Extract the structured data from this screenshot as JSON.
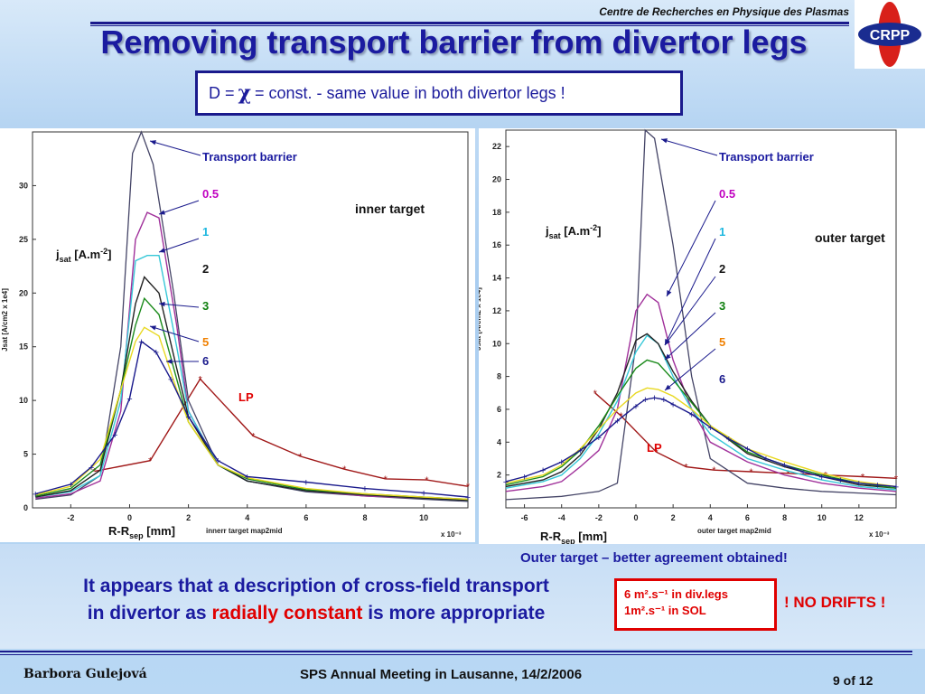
{
  "header": {
    "org": "Centre de Recherches en Physique des Plasmas",
    "logo_text": "CRPP",
    "title": "Removing transport barrier from divertor legs"
  },
  "formula": {
    "prefix": "D =",
    "symbol": "χ",
    "suffix": "= const.  -  same value in both divertor legs !"
  },
  "outer_caption": "Outer target – better agreement obtained!",
  "conclusion": {
    "line1": "It appears that a description of cross-field transport",
    "line2_pre": "in divertor as",
    "line2_red": "radially constant",
    "line2_post": "is more appropriate"
  },
  "diff_box": {
    "line1": "6 m².s⁻¹  in div.legs",
    "line2": "1m².s⁻¹ in SOL"
  },
  "no_drifts": "! NO DRIFTS !",
  "footer": {
    "author": "Barbora Gulejová",
    "meeting": "SPS Annual Meeting in Lausanne, 14/2/2006",
    "page": "9 of 12"
  },
  "colors": {
    "title": "#1b1ba0",
    "accent_red": "#e00000",
    "series": {
      "0.5": "#a0309a",
      "1": "#38c8d8",
      "2": "#222222",
      "3": "#1a8a1a",
      "5": "#e8d820",
      "6": "#1a1a8c",
      "LP": "#a01818",
      "transport_barrier": "#444466"
    },
    "label_colors": {
      "0.5": "#c000c0",
      "1": "#20b8e0",
      "2": "#111111",
      "3": "#108010",
      "5": "#f08000",
      "6": "#1a1a8c",
      "LP": "#e00000",
      "transport_barrier": "#1b1ba0"
    }
  },
  "chart_data": [
    {
      "type": "line",
      "annotation": "inner target",
      "ylabel_annot": "j_sat [A.m⁻²]",
      "xlabel_annot": "R-R_sep [mm]",
      "ylabel": "Jsat [A/cm2 x 1e4]",
      "xlabel": "innerr target map2mid",
      "x_multiplier": "x 10⁻³",
      "xlim": [
        -3.3,
        11.5
      ],
      "ylim": [
        0,
        35
      ],
      "xticks": [
        -2,
        0,
        2,
        4,
        6,
        8,
        10
      ],
      "yticks": [
        0,
        5,
        10,
        15,
        20,
        25,
        30
      ],
      "series": [
        {
          "name": "Transport barrier",
          "x": [
            -3.2,
            -2,
            -1,
            -0.3,
            0.1,
            0.4,
            0.8,
            1.5,
            2,
            3,
            4,
            6,
            8,
            10,
            11.5
          ],
          "y": [
            0.8,
            1.2,
            3,
            15,
            33,
            35,
            32,
            20,
            10,
            4,
            2.5,
            1.5,
            1.1,
            0.8,
            0.6
          ]
        },
        {
          "name": "0.5",
          "x": [
            -3.2,
            -2,
            -1,
            -0.3,
            0.2,
            0.6,
            1,
            1.6,
            2,
            3,
            4,
            6,
            8,
            10,
            11.5
          ],
          "y": [
            0.9,
            1.3,
            2.5,
            9,
            25,
            27.5,
            27,
            17,
            9,
            4,
            2.5,
            1.6,
            1.1,
            0.9,
            0.7
          ]
        },
        {
          "name": "1",
          "x": [
            -3.2,
            -2,
            -1,
            -0.3,
            0.2,
            0.6,
            1,
            1.6,
            2,
            3,
            4,
            6,
            8,
            10,
            11.5
          ],
          "y": [
            1.0,
            1.5,
            3,
            10,
            23,
            23.5,
            23.5,
            15,
            9,
            4,
            2.5,
            1.6,
            1.2,
            0.9,
            0.7
          ]
        },
        {
          "name": "2",
          "x": [
            -3.2,
            -2,
            -1,
            -0.3,
            0.2,
            0.5,
            1,
            1.6,
            2,
            3,
            4,
            6,
            8,
            10,
            11.5
          ],
          "y": [
            1.0,
            1.6,
            3.5,
            11,
            19,
            21.5,
            20,
            13,
            8.5,
            4,
            2.5,
            1.6,
            1.2,
            0.9,
            0.7
          ]
        },
        {
          "name": "3",
          "x": [
            -3.2,
            -2,
            -1,
            -0.3,
            0.2,
            0.5,
            1,
            1.6,
            2,
            3,
            4,
            6,
            8,
            10,
            11.5
          ],
          "y": [
            1.1,
            1.8,
            4,
            11,
            17,
            19.5,
            18,
            12,
            8,
            4,
            2.7,
            1.7,
            1.3,
            1.0,
            0.8
          ]
        },
        {
          "name": "5",
          "x": [
            -3.2,
            -2,
            -1,
            -0.3,
            0.2,
            0.5,
            1,
            1.6,
            2,
            3,
            4,
            6,
            8,
            10,
            11.5
          ],
          "y": [
            1.2,
            2.0,
            4.5,
            11,
            15.5,
            16.8,
            16,
            11,
            8,
            4,
            2.8,
            1.8,
            1.3,
            1.0,
            0.8
          ]
        },
        {
          "name": "6",
          "x": [
            -3.2,
            -2,
            -1.3,
            -0.5,
            0,
            0.4,
            0.9,
            1.4,
            2,
            3,
            4,
            6,
            8,
            10,
            11.5
          ],
          "y": [
            1.3,
            2.2,
            3.8,
            6.8,
            10.2,
            15.5,
            14.5,
            12,
            8.5,
            4.4,
            2.9,
            2.4,
            1.8,
            1.4,
            1.0
          ]
        },
        {
          "name": "LP",
          "x": [
            -1.2,
            0.7,
            2.4,
            4.2,
            5.8,
            7.3,
            8.7,
            10.1,
            11.5
          ],
          "y": [
            3.4,
            4.4,
            12,
            6.7,
            4.8,
            3.6,
            2.7,
            2.6,
            2.0
          ]
        }
      ]
    },
    {
      "type": "line",
      "annotation": "outer target",
      "ylabel_annot": "j_sat [A.m⁻²]",
      "xlabel_annot": "R-R_sep [mm]",
      "ylabel": "Jsat [A/cm2 x 1e4]",
      "xlabel": "outer target map2mid",
      "x_multiplier": "x 10⁻³",
      "xlim": [
        -7,
        14
      ],
      "ylim": [
        0,
        23
      ],
      "xticks": [
        -6,
        -4,
        -2,
        0,
        2,
        4,
        6,
        8,
        10,
        12
      ],
      "yticks": [
        2,
        4,
        6,
        8,
        10,
        12,
        14,
        16,
        18,
        20,
        22
      ],
      "series": [
        {
          "name": "Transport barrier",
          "x": [
            -7,
            -4,
            -2,
            -1,
            0,
            0.5,
            1,
            2,
            3,
            4,
            6,
            8,
            10,
            12,
            14
          ],
          "y": [
            0.5,
            0.7,
            1.0,
            1.5,
            10,
            23,
            22.5,
            16,
            8,
            3,
            1.5,
            1.2,
            1.0,
            0.9,
            0.8
          ]
        },
        {
          "name": "0.5",
          "x": [
            -7,
            -5,
            -4,
            -3,
            -2,
            -1,
            0,
            0.6,
            1.2,
            2,
            3,
            4,
            6,
            8,
            10,
            12,
            14
          ],
          "y": [
            1.0,
            1.3,
            1.6,
            2.5,
            3.5,
            6,
            12,
            13,
            12.5,
            9,
            6,
            4,
            2.8,
            2.0,
            1.5,
            1.2,
            1.0
          ]
        },
        {
          "name": "1",
          "x": [
            -7,
            -5,
            -4,
            -3,
            -2,
            -1,
            0,
            0.6,
            1.2,
            2,
            3,
            4,
            6,
            8,
            10,
            12,
            14
          ],
          "y": [
            1.2,
            1.6,
            2.0,
            3.0,
            4.5,
            6.5,
            9.5,
            10.5,
            10,
            8,
            6,
            4.5,
            3,
            2.3,
            1.7,
            1.3,
            1.1
          ]
        },
        {
          "name": "2",
          "x": [
            -7,
            -5,
            -4,
            -3,
            -2,
            -1,
            0,
            0.6,
            1.2,
            2,
            3,
            4,
            6,
            8,
            10,
            12,
            14
          ],
          "y": [
            1.3,
            1.7,
            2.2,
            3.2,
            4.8,
            7,
            10.2,
            10.6,
            10,
            8.3,
            6.5,
            5,
            3.3,
            2.5,
            1.9,
            1.4,
            1.2
          ]
        },
        {
          "name": "3",
          "x": [
            -7,
            -5,
            -4,
            -3,
            -2,
            -1,
            0,
            0.6,
            1.2,
            2,
            3,
            4,
            6,
            8,
            10,
            12,
            14
          ],
          "y": [
            1.4,
            1.9,
            2.5,
            3.5,
            5,
            6.8,
            8.5,
            9,
            8.8,
            7.8,
            6.4,
            5,
            3.4,
            2.6,
            2.0,
            1.5,
            1.2
          ]
        },
        {
          "name": "5",
          "x": [
            -7,
            -5,
            -4,
            -3,
            -2,
            -1,
            0,
            0.6,
            1.2,
            2,
            3,
            4,
            6,
            8,
            10,
            12,
            14
          ],
          "y": [
            1.5,
            2.0,
            2.6,
            3.6,
            4.8,
            6,
            7,
            7.3,
            7.2,
            6.8,
            6,
            5,
            3.6,
            2.8,
            2.1,
            1.6,
            1.3
          ]
        },
        {
          "name": "6",
          "x": [
            -7,
            -6,
            -5,
            -4,
            -3,
            -2,
            -1,
            0,
            0.5,
            1,
            1.5,
            2,
            3,
            4,
            5,
            6,
            7,
            8,
            9,
            10,
            11,
            12,
            13,
            14
          ],
          "y": [
            1.6,
            1.9,
            2.3,
            2.8,
            3.5,
            4.3,
            5.3,
            6.2,
            6.6,
            6.7,
            6.6,
            6.3,
            5.7,
            4.9,
            4.2,
            3.6,
            3.0,
            2.6,
            2.2,
            1.9,
            1.7,
            1.5,
            1.4,
            1.3
          ]
        },
        {
          "name": "LP",
          "x": [
            -2.2,
            -0.8,
            1.1,
            2.7,
            4.2,
            6.2,
            8.2,
            10.2,
            12.2,
            14
          ],
          "y": [
            7.0,
            5.6,
            3.4,
            2.5,
            2.3,
            2.2,
            2.1,
            2.0,
            1.9,
            1.8
          ]
        }
      ]
    }
  ],
  "legend_inner": {
    "transport_barrier": "Transport barrier",
    "l05": "0.5",
    "l1": "1",
    "l2": "2",
    "l3": "3",
    "l5": "5",
    "l6": "6",
    "lp": "LP"
  },
  "legend_outer": {
    "transport_barrier": "Transport barrier",
    "l05": "0.5",
    "l1": "1",
    "l2": "2",
    "l3": "3",
    "l5": "5",
    "l6": "6",
    "lp": "LP"
  }
}
